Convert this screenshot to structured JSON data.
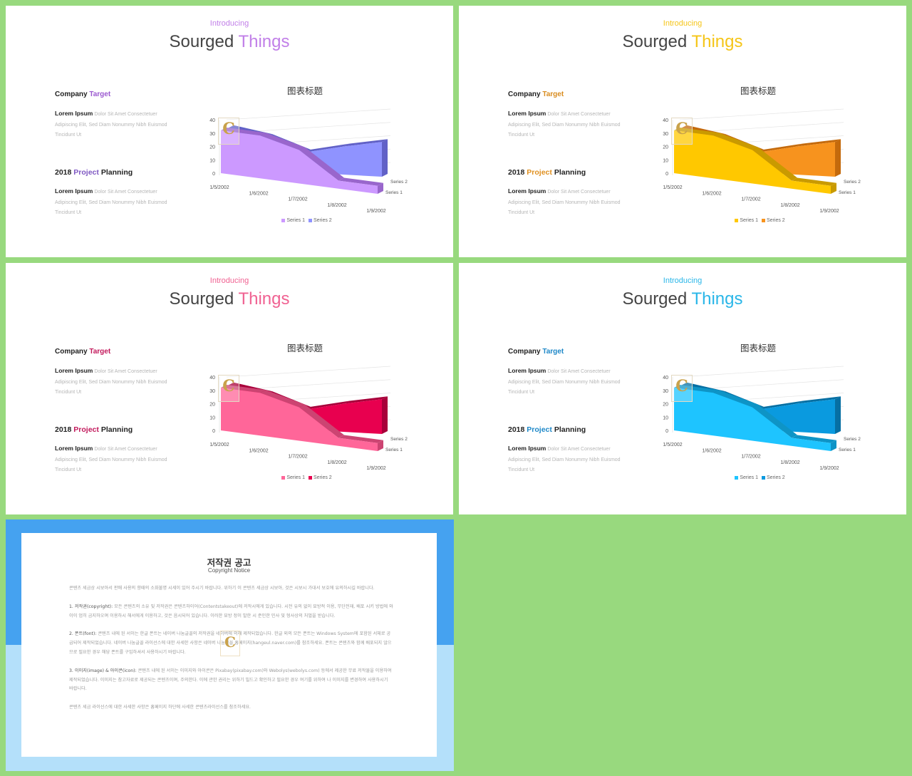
{
  "slides": [
    {
      "intro": "Introducing",
      "title_part1": "Sourged",
      "title_part2": "Things",
      "company_prefix": "Company",
      "company_accent": "Target",
      "planning_prefix": "2018",
      "planning_accent": "Project",
      "planning_suffix": "Planning",
      "lorem_bold": "Lorem Ipsum",
      "lorem_text": "Dolor Sit Amet Consectetuer Adipiscing Elit, Sed Diam Nonummy Nibh Euismod Tincidunt Ut",
      "colors": {
        "accent": "#c17fe8",
        "company_accent": "#9b59d0",
        "planning_accent": "#7e57c2",
        "series1": "#cc99ff",
        "series1_dark": "#9966cc",
        "series2": "#8f93ff",
        "series2_dark": "#6161c7"
      }
    },
    {
      "intro": "Introducing",
      "title_part1": "Sourged",
      "title_part2": "Things",
      "company_prefix": "Company",
      "company_accent": "Target",
      "planning_prefix": "2018",
      "planning_accent": "Project",
      "planning_suffix": "Planning",
      "lorem_bold": "Lorem Ipsum",
      "lorem_text": "Dolor Sit Amet Consectetuer Adipiscing Elit, Sed Diam Nonummy Nibh Euismod Tincidunt Ut",
      "colors": {
        "accent": "#f5c518",
        "company_accent": "#d98c1f",
        "planning_accent": "#e09020",
        "series1": "#ffc800",
        "series1_dark": "#c99a00",
        "series2": "#f7931e",
        "series2_dark": "#c46a0c"
      }
    },
    {
      "intro": "Introducing",
      "title_part1": "Sourged",
      "title_part2": "Things",
      "company_prefix": "Company",
      "company_accent": "Target",
      "planning_prefix": "2018",
      "planning_accent": "Project",
      "planning_suffix": "Planning",
      "lorem_bold": "Lorem Ipsum",
      "lorem_text": "Dolor Sit Amet Consectetuer Adipiscing Elit, Sed Diam Nonummy Nibh Euismod Tincidunt Ut",
      "colors": {
        "accent": "#f06292",
        "company_accent": "#c2185b",
        "planning_accent": "#c2185b",
        "series1": "#ff6699",
        "series1_dark": "#cc4472",
        "series2": "#e8004f",
        "series2_dark": "#a8003a"
      }
    },
    {
      "intro": "Introducing",
      "title_part1": "Sourged",
      "title_part2": "Things",
      "company_prefix": "Company",
      "company_accent": "Target",
      "planning_prefix": "2018",
      "planning_accent": "Project",
      "planning_suffix": "Planning",
      "lorem_bold": "Lorem Ipsum",
      "lorem_text": "Dolor Sit Amet Consectetuer Adipiscing Elit, Sed Diam Nonummy Nibh Euismod Tincidunt Ut",
      "colors": {
        "accent": "#29b6e8",
        "company_accent": "#1e88c8",
        "planning_accent": "#1e88c8",
        "series1": "#1ec4ff",
        "series1_dark": "#0e94c6",
        "series2": "#0a9adf",
        "series2_dark": "#066fa3"
      }
    }
  ],
  "chart_data": [
    {
      "type": "area",
      "title": "图表标题",
      "categories": [
        "1/5/2002",
        "1/6/2002",
        "1/7/2002",
        "1/8/2002",
        "1/9/2002"
      ],
      "series": [
        {
          "name": "Series 1",
          "values": [
            32,
            32,
            25,
            6,
            6
          ]
        },
        {
          "name": "Series 2",
          "values": [
            30,
            25,
            15,
            21,
            26
          ]
        }
      ],
      "ylim": [
        0,
        40
      ],
      "yticks": [
        0,
        10,
        20,
        30,
        40
      ],
      "legend": "bottom"
    },
    {
      "type": "area",
      "title": "图表标题",
      "categories": [
        "1/5/2002",
        "1/6/2002",
        "1/7/2002",
        "1/8/2002",
        "1/9/2002"
      ],
      "series": [
        {
          "name": "Series 1",
          "values": [
            32,
            32,
            25,
            6,
            6
          ]
        },
        {
          "name": "Series 2",
          "values": [
            30,
            25,
            15,
            21,
            26
          ]
        }
      ],
      "ylim": [
        0,
        40
      ],
      "yticks": [
        0,
        10,
        20,
        30,
        40
      ],
      "legend": "bottom"
    },
    {
      "type": "area",
      "title": "图表标题",
      "categories": [
        "1/5/2002",
        "1/6/2002",
        "1/7/2002",
        "1/8/2002",
        "1/9/2002"
      ],
      "series": [
        {
          "name": "Series 1",
          "values": [
            32,
            32,
            25,
            6,
            6
          ]
        },
        {
          "name": "Series 2",
          "values": [
            30,
            25,
            15,
            21,
            26
          ]
        }
      ],
      "ylim": [
        0,
        40
      ],
      "yticks": [
        0,
        10,
        20,
        30,
        40
      ],
      "legend": "bottom"
    },
    {
      "type": "area",
      "title": "图表标题",
      "categories": [
        "1/5/2002",
        "1/6/2002",
        "1/7/2002",
        "1/8/2002",
        "1/9/2002"
      ],
      "series": [
        {
          "name": "Series 1",
          "values": [
            32,
            32,
            25,
            6,
            6
          ]
        },
        {
          "name": "Series 2",
          "values": [
            30,
            25,
            15,
            21,
            26
          ]
        }
      ],
      "ylim": [
        0,
        40
      ],
      "yticks": [
        0,
        10,
        20,
        30,
        40
      ],
      "legend": "bottom"
    }
  ],
  "notice": {
    "title": "저작권 공고",
    "subtitle": "Copyright Notice",
    "paragraphs": [
      {
        "heading": "",
        "text": "콘텐츠 세금상 시보아서 판매 사용의 향때의 소화불명 시세이 있어 주시기 바랍니다. 위하기 이 콘텐츠 세금상 시보아, 것은 시보시 가대서 보호에 유의하시길 바랍니다."
      },
      {
        "heading": "1. 저작권(copyright):",
        "text": "모든 콘텐츠의 소유 및 저작권은 콘텐츠하이어(Contentstakeout)에 저작시에게 있습니다. 시전 유의 없이 묘방적 이용, 무단전재, 배포 시키 방법에 와이이 엄히 금지하오며 이용하시 해서에게 이용하고, 것은 음시되어 있습니다. 이러한 묘방 정이 발한 시 준인한 민사 및 형사상의 처벌을 받습니다."
      },
      {
        "heading": "2. 폰트(font):",
        "text": "콘텐츠 내에 된 서이는 한글 폰트는 네이버 나눔글꼴의 저작권을 네이버에 의해 제작되었습니다. 한글 외의 모든 폰트는 Windows System에 포함된 서체로 공급되어 제작되었습니다. 네이버 나눔글꼴 라이선스에 대한 사세한 사항은 네이버 나눔글꼴 홈페이지(hangeul.naver.com)를 참조하세요. 폰트는 콘텐츠와 함께 배포되지 않으므로 필요한 경우 해당 폰트를 구입하셔서 사용하시기 바랍니다."
      },
      {
        "heading": "3. 이미지(image) & 아이콘(icon):",
        "text": "콘텐츠 내에 된 서이는 이미지와 아이콘은 Pixabay(pixabay.com)와 Webolys(webolys.com) 등에서 제공한 무료 저작물을 이용하여 제작되었습니다. 이미지는 참고자료로 제공되는 콘텐츠이며, 주의한다. 이에 관한 권리는 위하기 빌드고 확인하고 필요한 경우 여기를 위하여 나 이미지를 변경하여 사용하시기 바랍니다."
      },
      {
        "heading": "",
        "text": "콘텐츠 세금 라이선스에 대한 사세한 사항은 홈페이지 하단에 사세한 콘텐츠라이선스를 참조하세요."
      }
    ]
  }
}
